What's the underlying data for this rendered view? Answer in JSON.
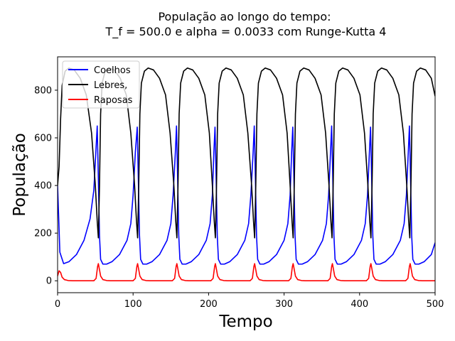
{
  "chart_data": {
    "type": "line",
    "title": "População ao longo do tempo:",
    "subtitle": "T_f = 500.0 e alpha = 0.0033 com Runge-Kutta 4",
    "xlabel": "Tempo",
    "ylabel": "População",
    "xlim": [
      0,
      500
    ],
    "ylim": [
      -50,
      940
    ],
    "xticks": [
      0,
      100,
      200,
      300,
      400,
      500
    ],
    "yticks": [
      0,
      200,
      400,
      600,
      800
    ],
    "grid": false,
    "legend_position": "top-left",
    "series": [
      {
        "name": "Coelhos",
        "color": "#0000ff",
        "points": [
          [
            0,
            400
          ],
          [
            3,
            120
          ],
          [
            8,
            72
          ],
          [
            15,
            80
          ],
          [
            25,
            110
          ],
          [
            35,
            170
          ],
          [
            43,
            260
          ],
          [
            48,
            380
          ],
          [
            51,
            560
          ],
          [
            52.5,
            650
          ],
          [
            54,
            430
          ],
          [
            55.5,
            190
          ],
          [
            57,
            90
          ],
          [
            60,
            70
          ],
          [
            65,
            70
          ],
          [
            72,
            80
          ],
          [
            82,
            110
          ],
          [
            92,
            170
          ],
          [
            97,
            240
          ],
          [
            100,
            360
          ],
          [
            103,
            540
          ],
          [
            105.5,
            645
          ],
          [
            107,
            420
          ],
          [
            108.5,
            190
          ],
          [
            110,
            90
          ],
          [
            113,
            70
          ],
          [
            118,
            70
          ],
          [
            125,
            80
          ],
          [
            135,
            110
          ],
          [
            145,
            170
          ],
          [
            150,
            240
          ],
          [
            153,
            360
          ],
          [
            156,
            540
          ],
          [
            157.5,
            650
          ],
          [
            159,
            430
          ],
          [
            160.5,
            190
          ],
          [
            162,
            90
          ],
          [
            165,
            70
          ],
          [
            170,
            70
          ],
          [
            177,
            80
          ],
          [
            187,
            110
          ],
          [
            197,
            170
          ],
          [
            202,
            240
          ],
          [
            205,
            360
          ],
          [
            207,
            540
          ],
          [
            208.5,
            645
          ],
          [
            210,
            430
          ],
          [
            211.5,
            190
          ],
          [
            213,
            90
          ],
          [
            216,
            70
          ],
          [
            221,
            70
          ],
          [
            228,
            80
          ],
          [
            238,
            110
          ],
          [
            248,
            170
          ],
          [
            253,
            240
          ],
          [
            256,
            360
          ],
          [
            259,
            540
          ],
          [
            260.5,
            650
          ],
          [
            262,
            430
          ],
          [
            263.5,
            190
          ],
          [
            265,
            90
          ],
          [
            268,
            70
          ],
          [
            273,
            70
          ],
          [
            280,
            80
          ],
          [
            290,
            110
          ],
          [
            300,
            170
          ],
          [
            305,
            240
          ],
          [
            308,
            360
          ],
          [
            310,
            540
          ],
          [
            311.5,
            645
          ],
          [
            313,
            430
          ],
          [
            314.5,
            190
          ],
          [
            316,
            90
          ],
          [
            319,
            70
          ],
          [
            324,
            70
          ],
          [
            331,
            80
          ],
          [
            341,
            110
          ],
          [
            351,
            170
          ],
          [
            356,
            240
          ],
          [
            359,
            360
          ],
          [
            361.5,
            540
          ],
          [
            363,
            650
          ],
          [
            364.5,
            430
          ],
          [
            366,
            190
          ],
          [
            367.5,
            90
          ],
          [
            370.5,
            70
          ],
          [
            375.5,
            70
          ],
          [
            382.5,
            80
          ],
          [
            392.5,
            110
          ],
          [
            402.5,
            170
          ],
          [
            407.5,
            240
          ],
          [
            410.5,
            360
          ],
          [
            413,
            540
          ],
          [
            414.5,
            645
          ],
          [
            416,
            430
          ],
          [
            417.5,
            190
          ],
          [
            419,
            90
          ],
          [
            422,
            70
          ],
          [
            427,
            70
          ],
          [
            434,
            80
          ],
          [
            444,
            110
          ],
          [
            454,
            170
          ],
          [
            459,
            240
          ],
          [
            462,
            360
          ],
          [
            464.5,
            540
          ],
          [
            466,
            650
          ],
          [
            467.5,
            430
          ],
          [
            469,
            190
          ],
          [
            470.5,
            90
          ],
          [
            473.5,
            70
          ],
          [
            478.5,
            70
          ],
          [
            485.5,
            80
          ],
          [
            495,
            110
          ],
          [
            500,
            160
          ]
        ]
      },
      {
        "name": "Lebres,",
        "color": "#000000",
        "points": [
          [
            0,
            400
          ],
          [
            2,
            480
          ],
          [
            4,
            680
          ],
          [
            6,
            820
          ],
          [
            10,
            880
          ],
          [
            15,
            893
          ],
          [
            22,
            885
          ],
          [
            30,
            850
          ],
          [
            38,
            780
          ],
          [
            45,
            620
          ],
          [
            50,
            400
          ],
          [
            52.5,
            250
          ],
          [
            54,
            180
          ],
          [
            55.5,
            400
          ],
          [
            57,
            700
          ],
          [
            59,
            830
          ],
          [
            63,
            880
          ],
          [
            68,
            893
          ],
          [
            75,
            885
          ],
          [
            83,
            850
          ],
          [
            91,
            780
          ],
          [
            97,
            620
          ],
          [
            102,
            400
          ],
          [
            104.5,
            250
          ],
          [
            106,
            180
          ],
          [
            107.5,
            400
          ],
          [
            109,
            700
          ],
          [
            111,
            830
          ],
          [
            115,
            880
          ],
          [
            120,
            893
          ],
          [
            127,
            885
          ],
          [
            135,
            850
          ],
          [
            143,
            780
          ],
          [
            149,
            620
          ],
          [
            154,
            400
          ],
          [
            156.5,
            250
          ],
          [
            158,
            180
          ],
          [
            159.5,
            400
          ],
          [
            161,
            700
          ],
          [
            163,
            830
          ],
          [
            167,
            880
          ],
          [
            172,
            893
          ],
          [
            179,
            885
          ],
          [
            187,
            850
          ],
          [
            195,
            780
          ],
          [
            201,
            620
          ],
          [
            205,
            400
          ],
          [
            207.5,
            250
          ],
          [
            209,
            180
          ],
          [
            210.5,
            400
          ],
          [
            212,
            700
          ],
          [
            214,
            830
          ],
          [
            218,
            880
          ],
          [
            223,
            893
          ],
          [
            230,
            885
          ],
          [
            238,
            850
          ],
          [
            246,
            780
          ],
          [
            252,
            620
          ],
          [
            257,
            400
          ],
          [
            259.5,
            250
          ],
          [
            261,
            180
          ],
          [
            262.5,
            400
          ],
          [
            264,
            700
          ],
          [
            266,
            830
          ],
          [
            270,
            880
          ],
          [
            275,
            893
          ],
          [
            282,
            885
          ],
          [
            290,
            850
          ],
          [
            298,
            780
          ],
          [
            304,
            620
          ],
          [
            308,
            400
          ],
          [
            310.5,
            250
          ],
          [
            312,
            180
          ],
          [
            313.5,
            400
          ],
          [
            315,
            700
          ],
          [
            317,
            830
          ],
          [
            321,
            880
          ],
          [
            326,
            893
          ],
          [
            333,
            885
          ],
          [
            341,
            850
          ],
          [
            349,
            780
          ],
          [
            355,
            620
          ],
          [
            359.5,
            400
          ],
          [
            362,
            250
          ],
          [
            363.5,
            180
          ],
          [
            365,
            400
          ],
          [
            366.5,
            700
          ],
          [
            368.5,
            830
          ],
          [
            372.5,
            880
          ],
          [
            377.5,
            893
          ],
          [
            384.5,
            885
          ],
          [
            392.5,
            850
          ],
          [
            400.5,
            780
          ],
          [
            406.5,
            620
          ],
          [
            411,
            400
          ],
          [
            413.5,
            250
          ],
          [
            415,
            180
          ],
          [
            416.5,
            400
          ],
          [
            418,
            700
          ],
          [
            420,
            830
          ],
          [
            424,
            880
          ],
          [
            429,
            893
          ],
          [
            436,
            885
          ],
          [
            444,
            850
          ],
          [
            452,
            780
          ],
          [
            458,
            620
          ],
          [
            462.5,
            400
          ],
          [
            465,
            250
          ],
          [
            466.5,
            180
          ],
          [
            468,
            400
          ],
          [
            469.5,
            700
          ],
          [
            471.5,
            830
          ],
          [
            475.5,
            880
          ],
          [
            480.5,
            893
          ],
          [
            487.5,
            885
          ],
          [
            495,
            850
          ],
          [
            500,
            775
          ]
        ]
      },
      {
        "name": "Raposas",
        "color": "#ff0000",
        "points": [
          [
            0,
            20
          ],
          [
            2,
            42
          ],
          [
            4,
            35
          ],
          [
            6,
            15
          ],
          [
            9,
            5
          ],
          [
            14,
            1
          ],
          [
            20,
            0
          ],
          [
            48,
            0
          ],
          [
            51,
            10
          ],
          [
            53,
            60
          ],
          [
            54,
            72
          ],
          [
            55,
            55
          ],
          [
            57,
            20
          ],
          [
            60,
            5
          ],
          [
            65,
            1
          ],
          [
            70,
            0
          ],
          [
            100,
            0
          ],
          [
            103,
            10
          ],
          [
            105,
            60
          ],
          [
            106,
            72
          ],
          [
            107,
            55
          ],
          [
            109,
            20
          ],
          [
            112,
            5
          ],
          [
            117,
            1
          ],
          [
            122,
            0
          ],
          [
            152,
            0
          ],
          [
            155,
            10
          ],
          [
            157,
            60
          ],
          [
            158,
            72
          ],
          [
            159,
            55
          ],
          [
            161,
            20
          ],
          [
            164,
            5
          ],
          [
            169,
            1
          ],
          [
            174,
            0
          ],
          [
            203,
            0
          ],
          [
            206,
            10
          ],
          [
            208,
            60
          ],
          [
            209,
            72
          ],
          [
            210,
            55
          ],
          [
            212,
            20
          ],
          [
            215,
            5
          ],
          [
            220,
            1
          ],
          [
            225,
            0
          ],
          [
            255,
            0
          ],
          [
            258,
            10
          ],
          [
            260,
            60
          ],
          [
            261,
            72
          ],
          [
            262,
            55
          ],
          [
            264,
            20
          ],
          [
            267,
            5
          ],
          [
            272,
            1
          ],
          [
            277,
            0
          ],
          [
            306,
            0
          ],
          [
            309,
            10
          ],
          [
            311,
            60
          ],
          [
            312,
            72
          ],
          [
            313,
            55
          ],
          [
            315,
            20
          ],
          [
            318,
            5
          ],
          [
            323,
            1
          ],
          [
            328,
            0
          ],
          [
            358,
            0
          ],
          [
            361,
            10
          ],
          [
            363,
            60
          ],
          [
            364,
            72
          ],
          [
            365,
            55
          ],
          [
            367,
            20
          ],
          [
            370,
            5
          ],
          [
            375,
            1
          ],
          [
            380,
            0
          ],
          [
            409,
            0
          ],
          [
            412,
            10
          ],
          [
            414,
            60
          ],
          [
            415,
            72
          ],
          [
            416,
            55
          ],
          [
            418,
            20
          ],
          [
            421,
            5
          ],
          [
            426,
            1
          ],
          [
            431,
            0
          ],
          [
            461,
            0
          ],
          [
            464,
            10
          ],
          [
            466,
            60
          ],
          [
            467,
            72
          ],
          [
            468,
            55
          ],
          [
            470,
            20
          ],
          [
            473,
            5
          ],
          [
            478,
            1
          ],
          [
            483,
            0
          ],
          [
            500,
            0
          ]
        ]
      }
    ]
  }
}
